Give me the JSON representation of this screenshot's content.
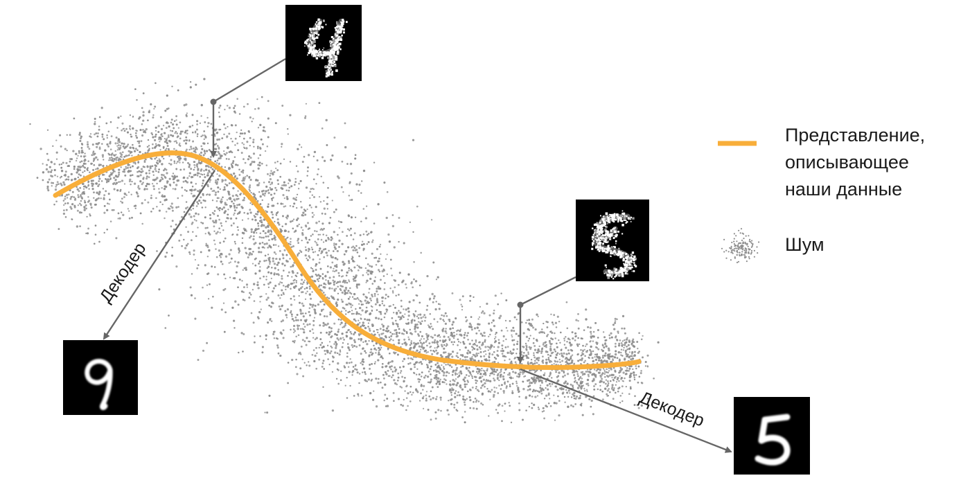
{
  "legend": {
    "curve_label_lines": [
      "Представление,",
      "описывающее",
      "наши данные"
    ],
    "noise_label": "Шум"
  },
  "labels": {
    "decoder_left": "Декодер",
    "decoder_right": "Декодер"
  },
  "images": {
    "noisy_four": "noisy-digit-4-image",
    "clean_nine": "decoded-digit-9-image",
    "noisy_five": "noisy-digit-5-image",
    "clean_five": "decoded-digit-5-image"
  },
  "colors": {
    "curve": "#F8AE3A",
    "noise_dots": "#8E8E8E",
    "arrows": "#666666",
    "digit_bg": "#000000",
    "digit_fg": "#ffffff",
    "text": "#1a1a1a"
  }
}
